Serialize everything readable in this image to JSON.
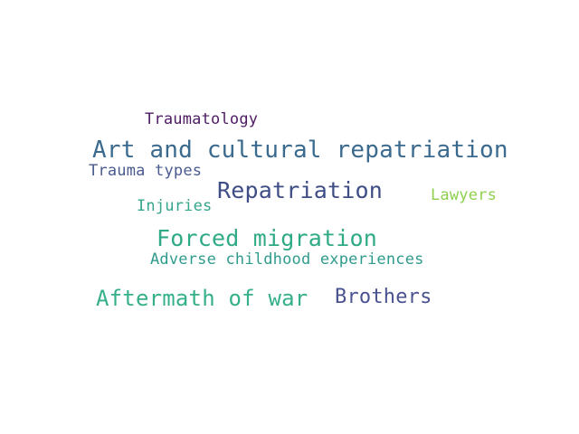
{
  "word_cloud": {
    "words": [
      {
        "text": "Traumatology",
        "color": "#4e1a62"
      },
      {
        "text": "Art and cultural repatriation",
        "color": "#3b6a8f"
      },
      {
        "text": "Trauma types",
        "color": "#4a5b8f"
      },
      {
        "text": "Repatriation",
        "color": "#3e4d86"
      },
      {
        "text": "Lawyers",
        "color": "#8fd14f"
      },
      {
        "text": "Injuries",
        "color": "#35a58c"
      },
      {
        "text": "Forced migration",
        "color": "#2faa86"
      },
      {
        "text": "Adverse childhood experiences",
        "color": "#2f9b8c"
      },
      {
        "text": "Aftermath of war",
        "color": "#36b08a"
      },
      {
        "text": "Brothers",
        "color": "#4a5390"
      }
    ]
  }
}
